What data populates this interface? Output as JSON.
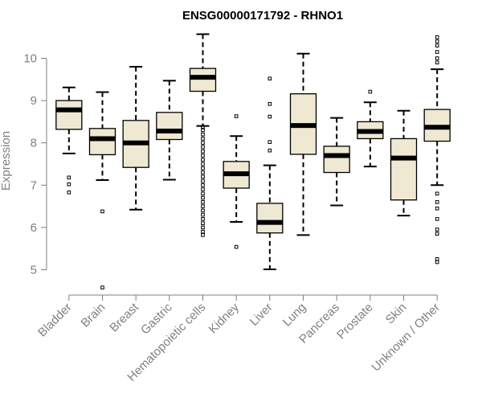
{
  "chart_data": {
    "type": "boxplot",
    "title": "ENSG00000171792 - RHNO1",
    "xlabel": "",
    "ylabel": "Expression",
    "ylim": [
      4.5,
      10.7
    ],
    "yticks": [
      5,
      6,
      7,
      8,
      9,
      10
    ],
    "categories": [
      "Bladder",
      "Brain",
      "Breast",
      "Gastric",
      "Hematopoietic cells",
      "Kidney",
      "Liver",
      "Lung",
      "Pancreas",
      "Prostate",
      "Skin",
      "Unknown / Other"
    ],
    "boxes": [
      {
        "min": 7.75,
        "q1": 8.32,
        "median": 8.78,
        "q3": 9.0,
        "max": 9.31,
        "outliers": [
          7.18,
          7.02,
          6.83
        ]
      },
      {
        "min": 7.12,
        "q1": 7.72,
        "median": 8.1,
        "q3": 8.34,
        "max": 9.2,
        "outliers": [
          6.38,
          4.58
        ]
      },
      {
        "min": 6.42,
        "q1": 7.42,
        "median": 8.0,
        "q3": 8.53,
        "max": 9.8,
        "outliers": []
      },
      {
        "min": 7.13,
        "q1": 8.08,
        "median": 8.28,
        "q3": 8.72,
        "max": 9.47,
        "outliers": []
      },
      {
        "min": 8.4,
        "q1": 9.22,
        "median": 9.55,
        "q3": 9.76,
        "max": 10.57,
        "outliers": [
          8.38,
          8.3,
          8.2,
          8.1,
          8.0,
          7.9,
          7.8,
          7.7,
          7.6,
          7.5,
          7.4,
          7.3,
          7.2,
          7.1,
          7.0,
          6.9,
          6.8,
          6.7,
          6.6,
          6.5,
          6.4,
          6.3,
          6.2,
          6.1,
          6.0,
          5.9,
          5.82
        ]
      },
      {
        "min": 6.13,
        "q1": 6.93,
        "median": 7.27,
        "q3": 7.56,
        "max": 8.16,
        "outliers": [
          8.63,
          5.54
        ]
      },
      {
        "min": 5.01,
        "q1": 5.87,
        "median": 6.12,
        "q3": 6.57,
        "max": 7.47,
        "outliers": [
          9.52,
          8.92,
          8.62,
          8.02,
          7.82
        ]
      },
      {
        "min": 5.82,
        "q1": 7.73,
        "median": 8.41,
        "q3": 9.16,
        "max": 10.11,
        "outliers": []
      },
      {
        "min": 6.52,
        "q1": 7.3,
        "median": 7.7,
        "q3": 7.92,
        "max": 8.59,
        "outliers": []
      },
      {
        "min": 7.44,
        "q1": 8.1,
        "median": 8.27,
        "q3": 8.5,
        "max": 8.96,
        "outliers": [
          9.21
        ]
      },
      {
        "min": 6.28,
        "q1": 6.65,
        "median": 7.64,
        "q3": 8.1,
        "max": 8.76,
        "outliers": []
      },
      {
        "min": 7.0,
        "q1": 8.04,
        "median": 8.37,
        "q3": 8.79,
        "max": 9.74,
        "outliers": [
          10.5,
          10.4,
          10.3,
          10.15,
          10.0,
          9.9,
          6.8,
          6.6,
          6.45,
          6.2,
          5.95,
          5.85,
          5.25,
          5.18
        ]
      }
    ]
  },
  "colors": {
    "box_fill": "#efe8d2",
    "box_stroke": "#000000",
    "axis": "#808080",
    "background": "#ffffff"
  }
}
